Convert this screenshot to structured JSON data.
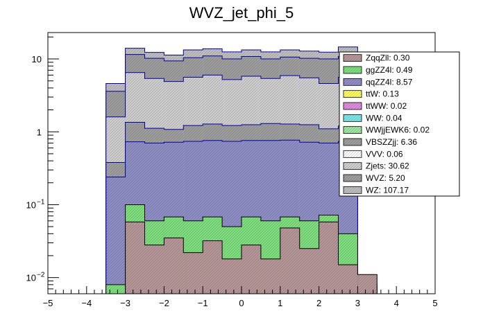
{
  "chart_data": {
    "type": "bar",
    "title": "WVZ_jet_phi_5",
    "xlabel": "",
    "ylabel": "",
    "x_range": [
      -5,
      5
    ],
    "y_range": [
      0.006,
      23
    ],
    "log_y": true,
    "stacked": true,
    "bin_edges": [
      -3.5,
      -3.0,
      -2.5,
      -2.0,
      -1.5,
      -1.0,
      -0.5,
      0.0,
      0.5,
      1.0,
      1.5,
      2.0,
      2.5,
      3.0,
      3.5
    ],
    "x_ticks": [
      "−5",
      "−4",
      "−3",
      "−2",
      "−1",
      "0",
      "1",
      "2",
      "3",
      "4",
      "5"
    ],
    "x_tick_values": [
      -5,
      -4,
      -3,
      -2,
      -1,
      0,
      1,
      2,
      3,
      4,
      5
    ],
    "y_ticks": [
      {
        "value": 0.01,
        "base": "10",
        "exp": "−2"
      },
      {
        "value": 0.1,
        "base": "10",
        "exp": "−1"
      },
      {
        "value": 1,
        "base": "1",
        "exp": ""
      },
      {
        "value": 10,
        "base": "10",
        "exp": ""
      }
    ],
    "cumulative_tops": [
      {
        "name": "ZqqZll",
        "color": "#b89898",
        "values": [
          0,
          0.058,
          0.028,
          0.035,
          0.022,
          0.032,
          0.018,
          0.028,
          0.018,
          0.048,
          0.025,
          0.058,
          0.015,
          0.011
        ]
      },
      {
        "name": "ggZZ4l",
        "color": "#80e080",
        "values": [
          0.008,
          0.1,
          0.06,
          0.068,
          0.06,
          0.068,
          0.05,
          0.068,
          0.06,
          0.068,
          0.06,
          0.072,
          0.04,
          0.008
        ]
      },
      {
        "name": "qqZZ4l",
        "color": "#9090c8",
        "values": [
          0.24,
          0.73,
          0.7,
          0.72,
          0.74,
          0.76,
          0.74,
          0.76,
          0.76,
          0.77,
          0.72,
          0.7,
          0.74,
          0.0
        ]
      },
      {
        "name": "VBSZZjj",
        "color": "#a0a0a0",
        "values": [
          0.38,
          1.35,
          1.12,
          1.08,
          1.22,
          1.28,
          1.22,
          1.25,
          1.3,
          1.28,
          1.25,
          1.1,
          1.2,
          0.0
        ]
      },
      {
        "name": "Zjets",
        "color": "#d0d0d0",
        "values": [
          1.6,
          6.5,
          5.4,
          4.9,
          5.6,
          6.0,
          5.2,
          5.8,
          5.4,
          5.9,
          5.5,
          4.6,
          5.6,
          0.0
        ]
      },
      {
        "name": "WVZ",
        "color": "#a0a0a0",
        "values": [
          3.6,
          11.5,
          10.2,
          9.4,
          10.4,
          11.0,
          10.0,
          10.8,
          10.0,
          10.6,
          10.2,
          10.0,
          10.8,
          0.0
        ]
      },
      {
        "name": "WZ",
        "color": "#c0c0c0",
        "values": [
          4.6,
          14.0,
          12.3,
          11.3,
          13.3,
          13.8,
          12.5,
          13.3,
          12.5,
          13.3,
          12.8,
          12.4,
          14.6,
          0.0
        ]
      }
    ],
    "legend": [
      {
        "label": "ZqqZll: 0.30",
        "color": "#b89898"
      },
      {
        "label": "ggZZ4l: 0.49",
        "color": "#80e080"
      },
      {
        "label": "qqZZ4l: 8.57",
        "color": "#9090c8"
      },
      {
        "label": "ttW: 0.13",
        "color": "#ffff66"
      },
      {
        "label": "ttWW: 0.02",
        "color": "#e090e0"
      },
      {
        "label": "WW: 0.04",
        "color": "#80e8e8"
      },
      {
        "label": "WWjjEWK6: 0.02",
        "color": "#a0e8a0"
      },
      {
        "label": "VBSZZjj: 6.36",
        "color": "#a0a0a0"
      },
      {
        "label": "VVV: 0.06",
        "color": "#ffffff"
      },
      {
        "label": "Zjets: 30.62",
        "color": "#d0d0d0"
      },
      {
        "label": "WVZ: 5.20",
        "color": "#a0a0a0"
      },
      {
        "label": "WZ: 107.17",
        "color": "#c0c0c0"
      }
    ],
    "legend_position": "top-right",
    "grid": false
  }
}
